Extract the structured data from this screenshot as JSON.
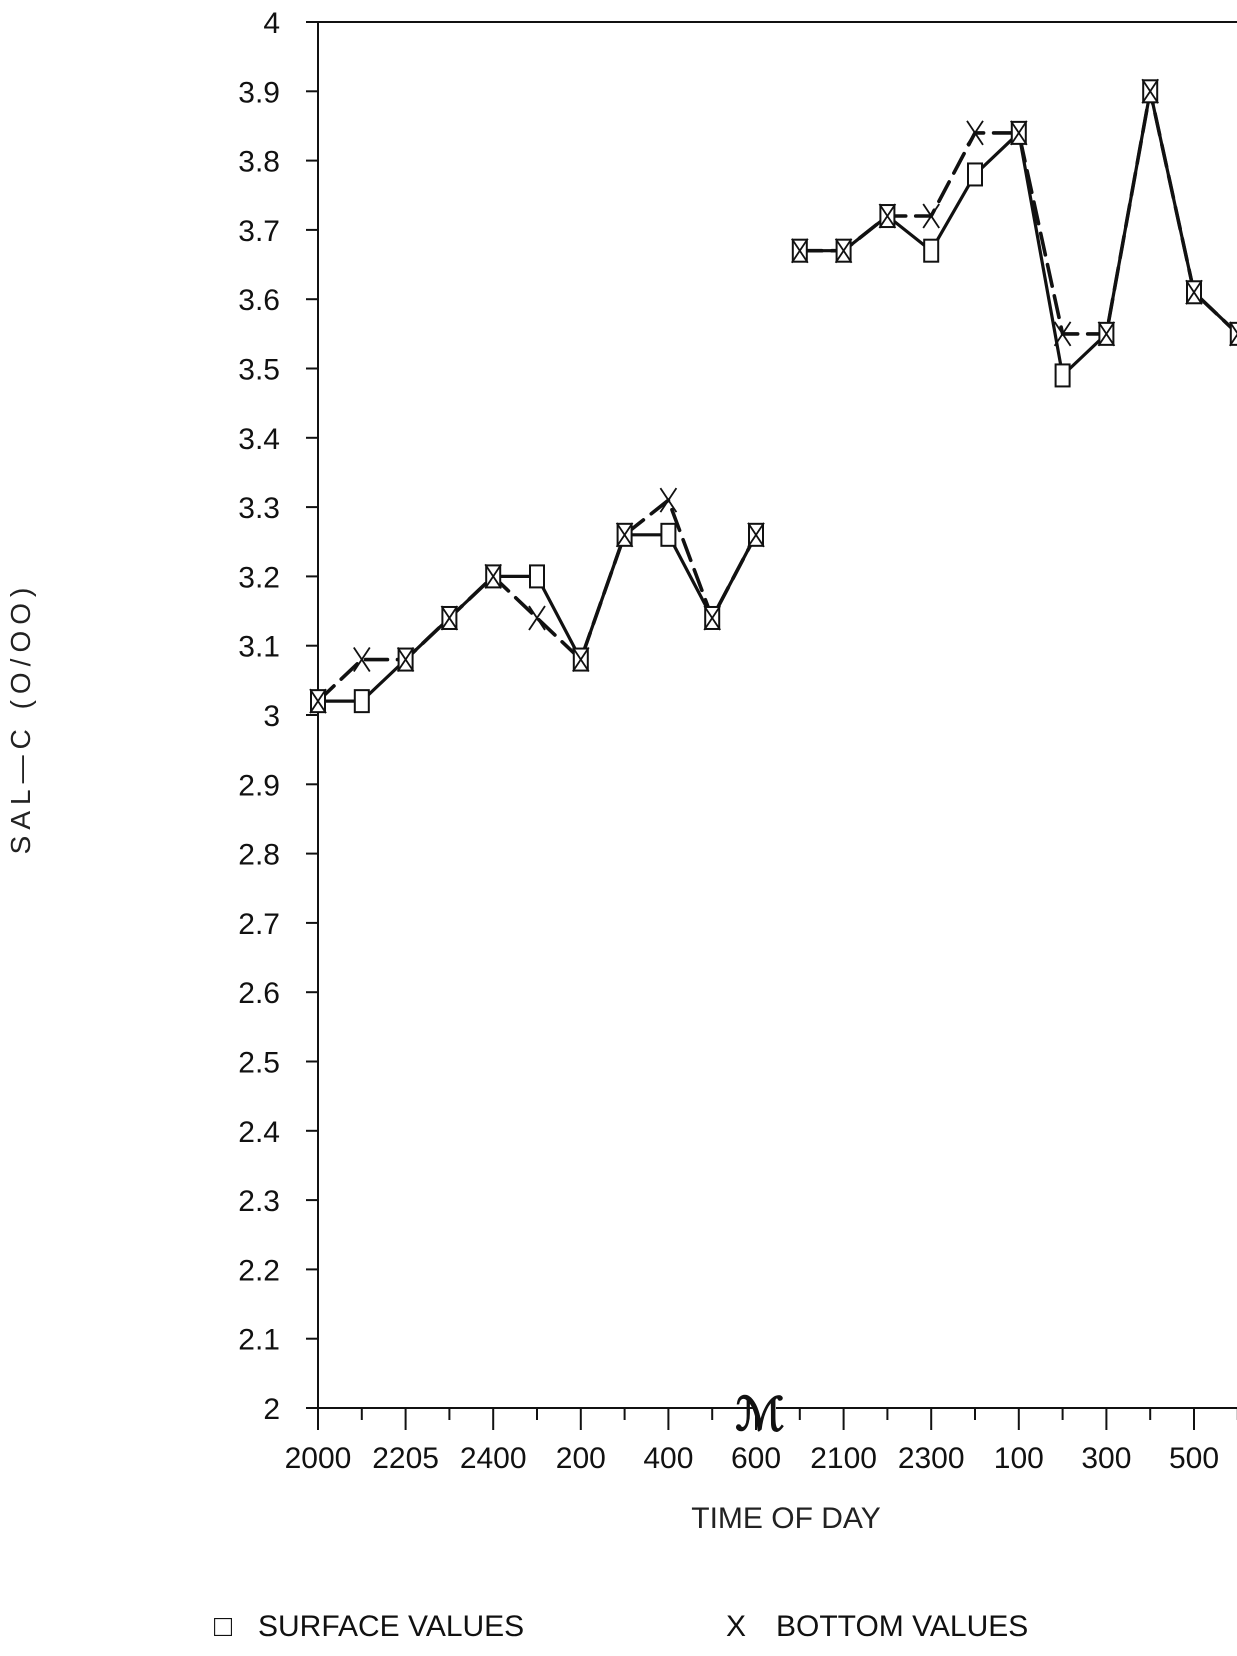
{
  "chart_data": {
    "type": "line",
    "ylabel": "SAL—C (O/OO)",
    "xlabel": "TIME OF DAY",
    "ylim": [
      2,
      4
    ],
    "y_ticks": [
      "2",
      "2.1",
      "2.2",
      "2.3",
      "2.4",
      "2.5",
      "2.6",
      "2.7",
      "2.8",
      "2.9",
      "3",
      "3.1",
      "3.2",
      "3.3",
      "3.4",
      "3.5",
      "3.6",
      "3.7",
      "3.8",
      "3.9",
      "4"
    ],
    "x_tick_labels": [
      "2000",
      "2205",
      "2400",
      "200",
      "400",
      "600",
      "2100",
      "2300",
      "100",
      "300",
      "500"
    ],
    "x_axis_break_symbol": "ℳ",
    "legend": [
      {
        "symbol": "□",
        "label": "SURFACE VALUES"
      },
      {
        "symbol": "X",
        "label": "BOTTOM VALUES"
      }
    ],
    "series": [
      {
        "name": "SURFACE VALUES",
        "segments": [
          [
            3.02,
            3.02,
            3.08,
            3.14,
            3.2,
            3.2,
            3.08,
            3.26,
            3.26,
            3.14,
            3.26
          ],
          [
            3.67,
            3.67,
            3.72,
            3.67,
            3.78,
            3.84,
            3.49,
            3.55,
            3.9,
            3.61,
            3.55
          ]
        ]
      },
      {
        "name": "BOTTOM VALUES",
        "segments": [
          [
            3.02,
            3.08,
            3.08,
            3.14,
            3.2,
            3.14,
            3.08,
            3.26,
            3.31,
            3.14,
            3.26
          ],
          [
            3.67,
            3.67,
            3.72,
            3.72,
            3.84,
            3.84,
            3.55,
            3.55,
            3.9,
            3.61,
            3.55
          ]
        ]
      }
    ]
  }
}
